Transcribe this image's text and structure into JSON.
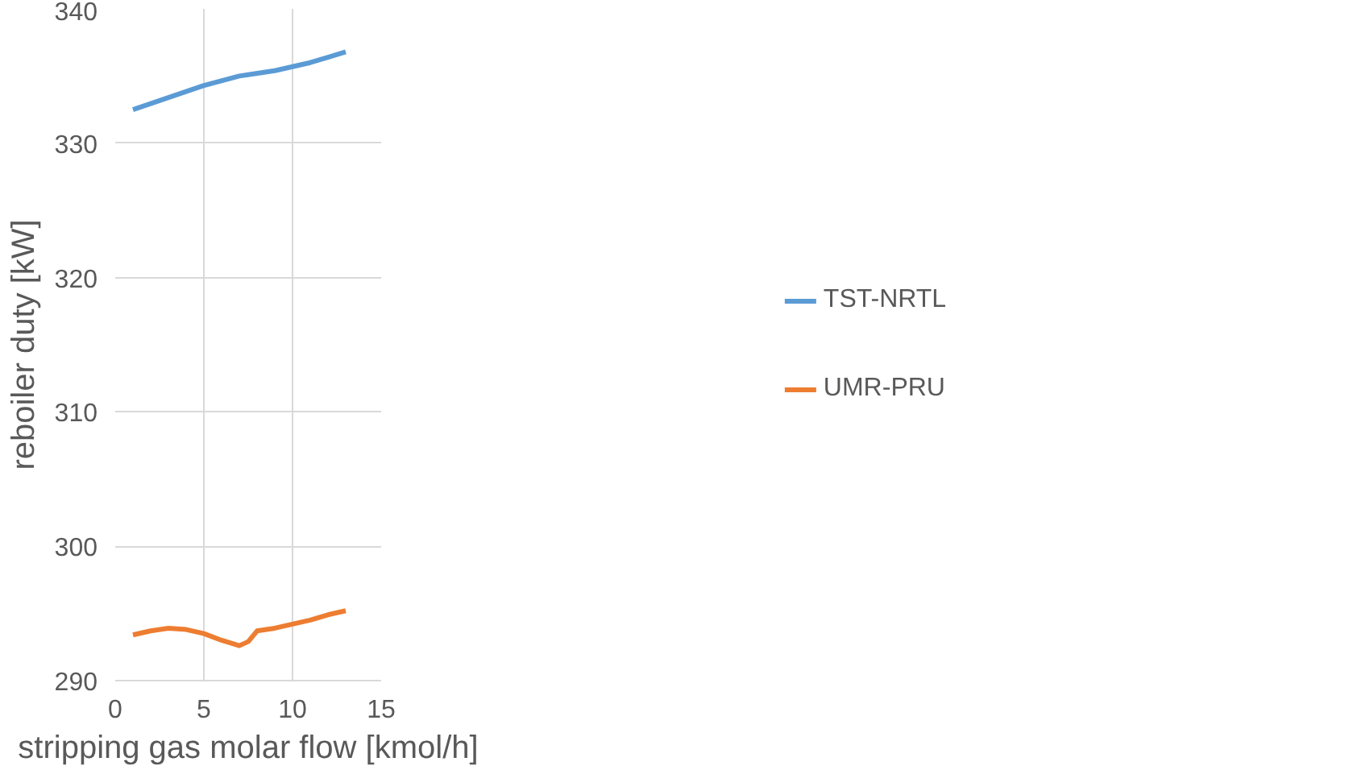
{
  "chart_data": {
    "type": "line",
    "xlabel": "stripping gas molar flow [kmol/h]",
    "ylabel": "reboiler duty [kW]",
    "xlim": [
      0,
      15
    ],
    "xticks": [
      0,
      5,
      10,
      15
    ],
    "ylim": [
      290,
      340
    ],
    "yticks": [
      290,
      300,
      310,
      320,
      330,
      340
    ],
    "grid": true,
    "legend": "right",
    "series": [
      {
        "name": "TST-NRTL",
        "color": "#5b9bd5",
        "x": [
          1,
          3,
          5,
          7,
          7.5,
          9,
          10,
          11,
          12,
          13
        ],
        "values": [
          332.5,
          333.4,
          334.3,
          335.0,
          335.1,
          335.4,
          335.7,
          336.0,
          336.4,
          336.8
        ]
      },
      {
        "name": "UMR-PRU",
        "color": "#ed7d31",
        "x": [
          1,
          2,
          3,
          4,
          5,
          6,
          7,
          7.5,
          8,
          9,
          10,
          11,
          12,
          13
        ],
        "values": [
          293.4,
          293.7,
          293.9,
          293.8,
          293.5,
          293.0,
          292.6,
          292.9,
          293.7,
          293.9,
          294.2,
          294.5,
          294.9,
          295.2
        ]
      }
    ]
  }
}
